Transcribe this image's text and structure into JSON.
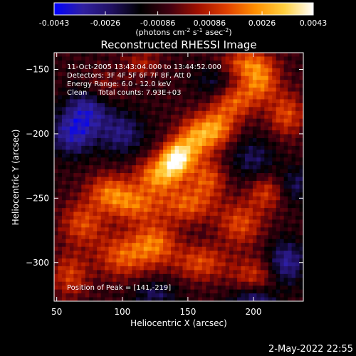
{
  "chart_data": {
    "type": "heatmap",
    "title": "Reconstructed RHESSI Image",
    "xlabel": "Heliocentric X (arcsec)",
    "ylabel": "Heliocentric Y (arcsec)",
    "xlim": [
      48,
      238
    ],
    "ylim": [
      -330,
      -137
    ],
    "xticks": [
      50,
      100,
      150,
      200
    ],
    "yticks": [
      -150,
      -200,
      -250,
      -300
    ],
    "colorbar": {
      "range": [
        -0.0043,
        0.0043
      ],
      "ticks": [
        "-0.0043",
        "-0.0026",
        "-0.00086",
        "0.00086",
        "0.0026",
        "0.0043"
      ],
      "label_main": "(photons cm",
      "label_sup1": "-2",
      "label_mid": " s",
      "label_sup2": "-1",
      "label_end": " asec",
      "label_sup3": "-2",
      "label_close": ")",
      "colors": [
        "#0000ff",
        "#3020a0",
        "#201060",
        "#000000",
        "#400010",
        "#a01000",
        "#e04000",
        "#ff9000",
        "#ffd040",
        "#ffffff"
      ]
    },
    "annotations": [
      "11-Oct-2005 13:43:04.000 to 13:44:52.000",
      "Detectors: 3F 4F 5F 6F 7F 8F, Att 0",
      "Energy Range: 6.0 - 12.0 keV",
      "Clean     Total counts: 7.93E+03"
    ],
    "peak_text": "Position of Peak = [141,-219]",
    "peak": [
      141,
      -219
    ],
    "sources": [
      {
        "x": 141,
        "y": -219,
        "amp": 1.0,
        "sx": 8,
        "sy": 9
      },
      {
        "x": 128,
        "y": -232,
        "amp": 0.75,
        "sx": 12,
        "sy": 10
      },
      {
        "x": 155,
        "y": -205,
        "amp": 0.7,
        "sx": 10,
        "sy": 12
      },
      {
        "x": 172,
        "y": -196,
        "amp": 0.65,
        "sx": 10,
        "sy": 10
      },
      {
        "x": 185,
        "y": -175,
        "amp": 0.55,
        "sx": 12,
        "sy": 10
      },
      {
        "x": 205,
        "y": -160,
        "amp": 0.6,
        "sx": 10,
        "sy": 10
      },
      {
        "x": 195,
        "y": -145,
        "amp": 0.55,
        "sx": 14,
        "sy": 8
      },
      {
        "x": 225,
        "y": -185,
        "amp": 0.5,
        "sx": 10,
        "sy": 12
      },
      {
        "x": 165,
        "y": -235,
        "amp": 0.5,
        "sx": 10,
        "sy": 10
      },
      {
        "x": 150,
        "y": -255,
        "amp": 0.55,
        "sx": 14,
        "sy": 10
      },
      {
        "x": 110,
        "y": -255,
        "amp": 0.55,
        "sx": 14,
        "sy": 10
      },
      {
        "x": 90,
        "y": -245,
        "amp": 0.55,
        "sx": 12,
        "sy": 10
      },
      {
        "x": 70,
        "y": -270,
        "amp": 0.5,
        "sx": 12,
        "sy": 12
      },
      {
        "x": 100,
        "y": -295,
        "amp": 0.55,
        "sx": 14,
        "sy": 12
      },
      {
        "x": 125,
        "y": -285,
        "amp": 0.6,
        "sx": 12,
        "sy": 12
      },
      {
        "x": 160,
        "y": -300,
        "amp": 0.5,
        "sx": 14,
        "sy": 10
      },
      {
        "x": 190,
        "y": -270,
        "amp": 0.5,
        "sx": 12,
        "sy": 12
      },
      {
        "x": 210,
        "y": -245,
        "amp": 0.45,
        "sx": 10,
        "sy": 10
      },
      {
        "x": 200,
        "y": -310,
        "amp": 0.4,
        "sx": 12,
        "sy": 10
      },
      {
        "x": 60,
        "y": -310,
        "amp": 0.45,
        "sx": 10,
        "sy": 12
      },
      {
        "x": 85,
        "y": -165,
        "amp": 0.3,
        "sx": 10,
        "sy": 10
      },
      {
        "x": 115,
        "y": -145,
        "amp": 0.3,
        "sx": 10,
        "sy": 8
      },
      {
        "x": 62,
        "y": -200,
        "amp": -0.6,
        "sx": 12,
        "sy": 12
      },
      {
        "x": 75,
        "y": -180,
        "amp": -0.55,
        "sx": 12,
        "sy": 12
      },
      {
        "x": 100,
        "y": -200,
        "amp": -0.45,
        "sx": 12,
        "sy": 12
      },
      {
        "x": 200,
        "y": -220,
        "amp": -0.35,
        "sx": 12,
        "sy": 12
      },
      {
        "x": 225,
        "y": -300,
        "amp": -0.55,
        "sx": 10,
        "sy": 12
      },
      {
        "x": 200,
        "y": -330,
        "amp": -0.5,
        "sx": 12,
        "sy": 8
      },
      {
        "x": 125,
        "y": -325,
        "amp": -0.35,
        "sx": 12,
        "sy": 8
      },
      {
        "x": 170,
        "y": -160,
        "amp": -0.3,
        "sx": 10,
        "sy": 10
      },
      {
        "x": 232,
        "y": -240,
        "amp": -0.35,
        "sx": 10,
        "sy": 10
      }
    ]
  },
  "footer_date": "2-May-2022 22:55"
}
